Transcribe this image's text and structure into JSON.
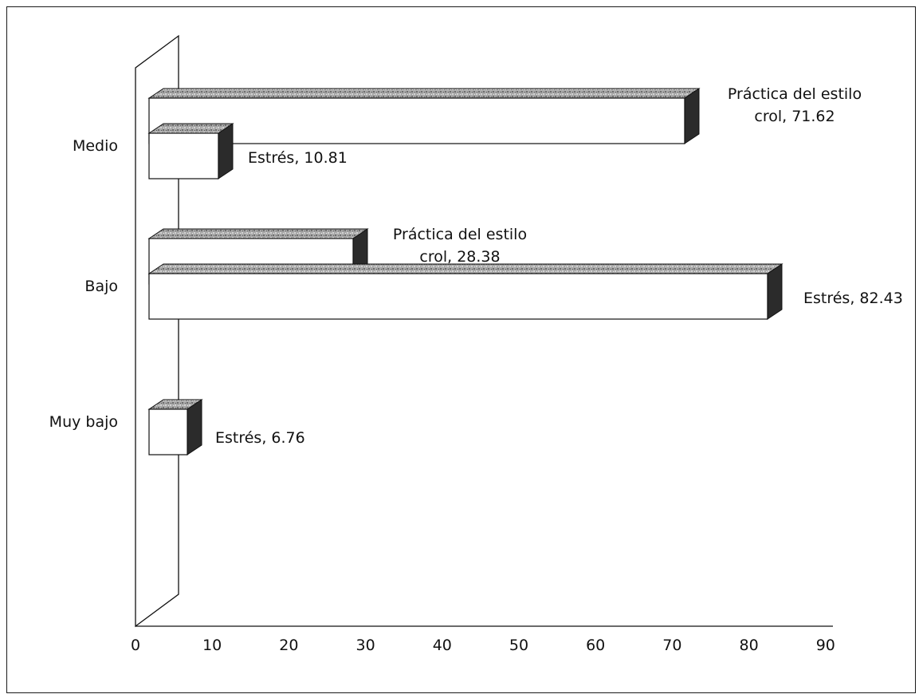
{
  "chart_data": {
    "type": "bar",
    "orientation": "horizontal",
    "three_d": true,
    "categories": [
      "Muy bajo",
      "Bajo",
      "Medio"
    ],
    "series": [
      {
        "name": "Estrés",
        "values": [
          6.76,
          82.43,
          10.81
        ]
      },
      {
        "name": "Práctica del estilo crol",
        "values": [
          null,
          28.38,
          71.62
        ]
      }
    ],
    "data_labels": [
      {
        "category": "Medio",
        "series": "Práctica del estilo crol",
        "lines": [
          "Práctica del estilo",
          "crol, 71.62"
        ]
      },
      {
        "category": "Medio",
        "series": "Estrés",
        "lines": [
          "Estrés, 10.81"
        ]
      },
      {
        "category": "Bajo",
        "series": "Práctica del estilo crol",
        "lines": [
          "Práctica del estilo",
          "crol, 28.38"
        ]
      },
      {
        "category": "Bajo",
        "series": "Estrés",
        "lines": [
          "Estrés, 82.43"
        ]
      },
      {
        "category": "Muy bajo",
        "series": "Estrés",
        "lines": [
          "Estrés, 6.76"
        ]
      }
    ],
    "x_ticks": [
      "0",
      "10",
      "20",
      "30",
      "40",
      "50",
      "60",
      "70",
      "80",
      "90"
    ],
    "xlim": [
      0,
      90
    ],
    "title": "",
    "xlabel": "",
    "ylabel": "",
    "grid": false,
    "legend": "none",
    "colors": {
      "bar_face": "#ffffff",
      "bar_top": "#9a9a9a",
      "bar_side": "#2b2b2b",
      "outline": "#111111"
    }
  }
}
